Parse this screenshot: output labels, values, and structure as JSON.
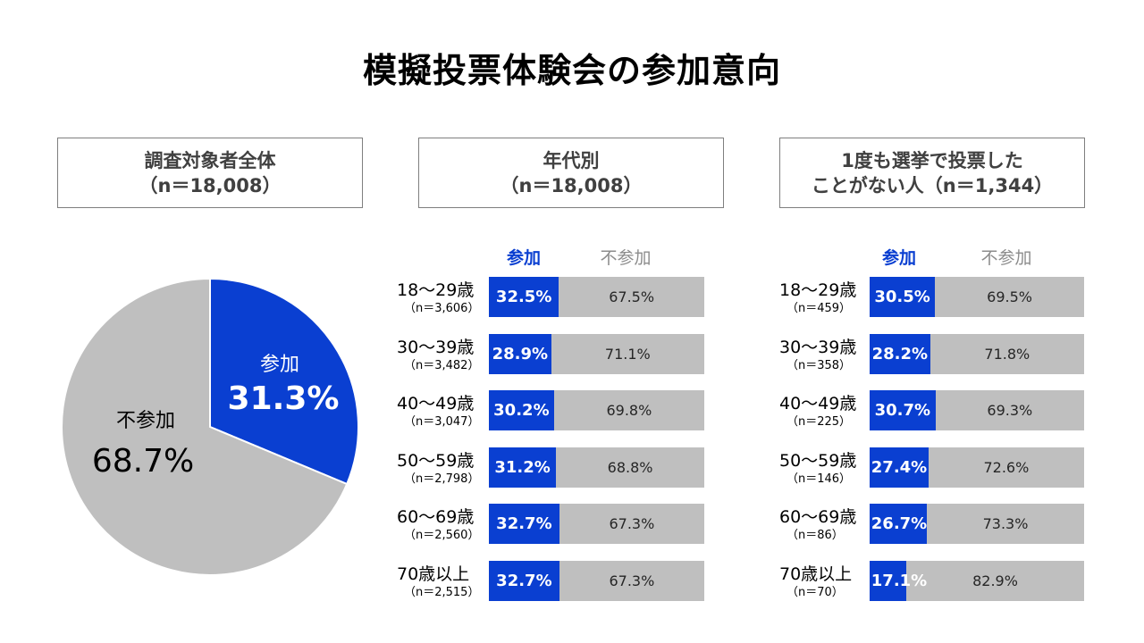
{
  "title": "模擬投票体験会の参加意向",
  "colors": {
    "participate": "#0a3fd1",
    "not_participate": "#bfbfbf"
  },
  "legend": {
    "participate": "参加",
    "not_participate": "不参加"
  },
  "panels": {
    "overall": {
      "line1": "調査対象者全体",
      "line2": "（n＝18,008）"
    },
    "by_age": {
      "line1": "年代別",
      "line2": "（n＝18,008）"
    },
    "never_voted": {
      "line1": "1度も選挙で投票した",
      "line2": "ことがない人（n＝1,344）"
    }
  },
  "chart_data": [
    {
      "type": "pie",
      "slices": [
        {
          "label": "参加",
          "value": 31.3,
          "value_label": "31.3%"
        },
        {
          "label": "不参加",
          "value": 68.7,
          "value_label": "68.7%"
        }
      ]
    },
    {
      "type": "bar",
      "stacked": true,
      "orientation": "horizontal",
      "rows": [
        {
          "age": "18～29歳",
          "n": "（n＝3,606）",
          "participate": 32.5,
          "p_label": "32.5%",
          "not_participate": 67.5,
          "np_label": "67.5%"
        },
        {
          "age": "30～39歳",
          "n": "（n＝3,482）",
          "participate": 28.9,
          "p_label": "28.9%",
          "not_participate": 71.1,
          "np_label": "71.1%"
        },
        {
          "age": "40～49歳",
          "n": "（n＝3,047）",
          "participate": 30.2,
          "p_label": "30.2%",
          "not_participate": 69.8,
          "np_label": "69.8%"
        },
        {
          "age": "50～59歳",
          "n": "（n＝2,798）",
          "participate": 31.2,
          "p_label": "31.2%",
          "not_participate": 68.8,
          "np_label": "68.8%"
        },
        {
          "age": "60～69歳",
          "n": "（n＝2,560）",
          "participate": 32.7,
          "p_label": "32.7%",
          "not_participate": 67.3,
          "np_label": "67.3%"
        },
        {
          "age": "70歳以上",
          "n": "（n＝2,515）",
          "participate": 32.7,
          "p_label": "32.7%",
          "not_participate": 67.3,
          "np_label": "67.3%"
        }
      ]
    },
    {
      "type": "bar",
      "stacked": true,
      "orientation": "horizontal",
      "rows": [
        {
          "age": "18～29歳",
          "n": "（n＝459）",
          "participate": 30.5,
          "p_label": "30.5%",
          "not_participate": 69.5,
          "np_label": "69.5%"
        },
        {
          "age": "30～39歳",
          "n": "（n＝358）",
          "participate": 28.2,
          "p_label": "28.2%",
          "not_participate": 71.8,
          "np_label": "71.8%"
        },
        {
          "age": "40～49歳",
          "n": "（n＝225）",
          "participate": 30.7,
          "p_label": "30.7%",
          "not_participate": 69.3,
          "np_label": "69.3%"
        },
        {
          "age": "50～59歳",
          "n": "（n＝146）",
          "participate": 27.4,
          "p_label": "27.4%",
          "not_participate": 72.6,
          "np_label": "72.6%"
        },
        {
          "age": "60～69歳",
          "n": "（n＝86）",
          "participate": 26.7,
          "p_label": "26.7%",
          "not_participate": 73.3,
          "np_label": "73.3%"
        },
        {
          "age": "70歳以上",
          "n": "（n＝70）",
          "participate": 17.1,
          "p_label": "17.1%",
          "not_participate": 82.9,
          "np_label": "82.9%"
        }
      ]
    }
  ]
}
